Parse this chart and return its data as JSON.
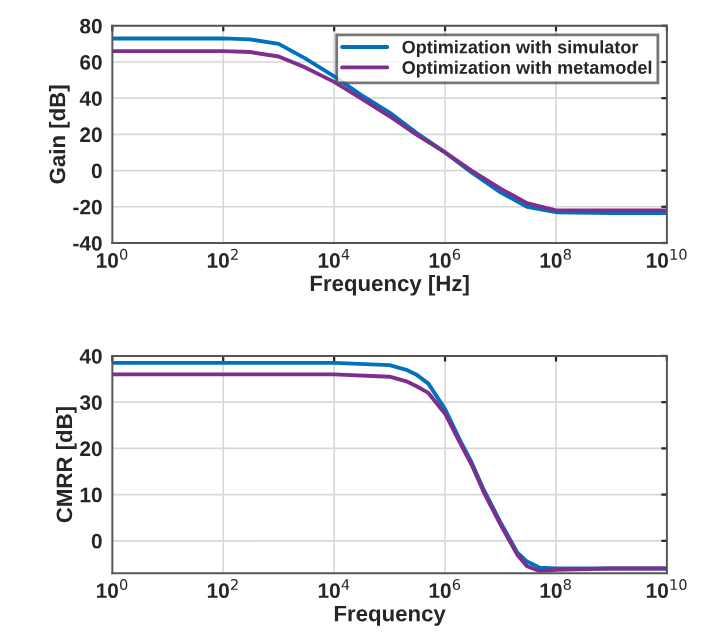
{
  "chart_data": [
    {
      "type": "line",
      "xlabel": "Frequency [Hz]",
      "ylabel": "Gain [dB]",
      "log": "x",
      "grid": true,
      "legend": "top right",
      "xlim": [
        1,
        10000000000
      ],
      "xticks": [
        {
          "value": 1,
          "label": "10$^{0}$"
        },
        {
          "value": 100,
          "label": "10$^{2}$"
        },
        {
          "value": 10000,
          "label": "10$^{4}$"
        },
        {
          "value": 1000000,
          "label": "10$^{6}$"
        },
        {
          "value": 100000000,
          "label": "10$^{8}$"
        },
        {
          "value": 10000000000,
          "label": "10$^{10}$"
        }
      ],
      "ylim": [
        -40,
        80
      ],
      "yticks": [
        -40,
        -20,
        0,
        20,
        40,
        60,
        80
      ],
      "series": [
        {
          "name": "Optimization with simulator",
          "color": "#0072bd",
          "x": [
            1,
            100,
            300,
            1000,
            3000,
            10000,
            30000,
            100000,
            300000,
            1000000,
            3000000,
            10000000,
            30000000,
            100000000,
            1000000000,
            10000000000
          ],
          "values": [
            73,
            73,
            72.5,
            70,
            62,
            52,
            42,
            32,
            21,
            10,
            -1,
            -12,
            -20,
            -23,
            -23.5,
            -23.5
          ]
        },
        {
          "name": "Optimization with metamodel",
          "color": "#7e2f8e",
          "x": [
            1,
            100,
            300,
            1000,
            3000,
            10000,
            30000,
            100000,
            300000,
            1000000,
            3000000,
            10000000,
            30000000,
            100000000,
            1000000000,
            10000000000
          ],
          "values": [
            66,
            66,
            65.5,
            63,
            57,
            49,
            40,
            30,
            20,
            10,
            0,
            -10,
            -18,
            -22,
            -22,
            -22
          ]
        }
      ]
    },
    {
      "type": "line",
      "xlabel": "Frequency",
      "ylabel": "CMRR [dB]",
      "log": "x",
      "grid": true,
      "xlim": [
        1,
        10000000000
      ],
      "xticks": [
        {
          "value": 1,
          "label": "10$^{0}$"
        },
        {
          "value": 100,
          "label": "10$^{2}$"
        },
        {
          "value": 10000,
          "label": "10$^{4}$"
        },
        {
          "value": 1000000,
          "label": "10$^{6}$"
        },
        {
          "value": 100000000,
          "label": "10$^{8}$"
        },
        {
          "value": 10000000000,
          "label": "10$^{10}$"
        }
      ],
      "ylim": [
        -7,
        40
      ],
      "yticks": [
        0,
        10,
        20,
        30,
        40
      ],
      "series": [
        {
          "color": "#0072bd",
          "x": [
            1,
            10000,
            100000,
            200000,
            300000,
            500000,
            1000000,
            2000000,
            3000000,
            5000000,
            10000000,
            20000000,
            30000000,
            50000000,
            100000000,
            1000000000,
            10000000000
          ],
          "values": [
            38.5,
            38.5,
            38,
            37,
            36,
            34,
            28.5,
            21,
            17,
            11,
            4,
            -2.5,
            -4.5,
            -5.8,
            -6,
            -6,
            -6
          ]
        },
        {
          "color": "#7e2f8e",
          "x": [
            1,
            10000,
            100000,
            200000,
            300000,
            500000,
            1000000,
            2000000,
            3000000,
            5000000,
            10000000,
            20000000,
            30000000,
            50000000,
            100000000,
            1000000000,
            10000000000
          ],
          "values": [
            36,
            36,
            35.5,
            34.5,
            33.5,
            32,
            27.5,
            20.5,
            16.5,
            10.5,
            3.5,
            -3,
            -5.5,
            -6.5,
            -6.3,
            -6,
            -6
          ]
        }
      ]
    }
  ]
}
